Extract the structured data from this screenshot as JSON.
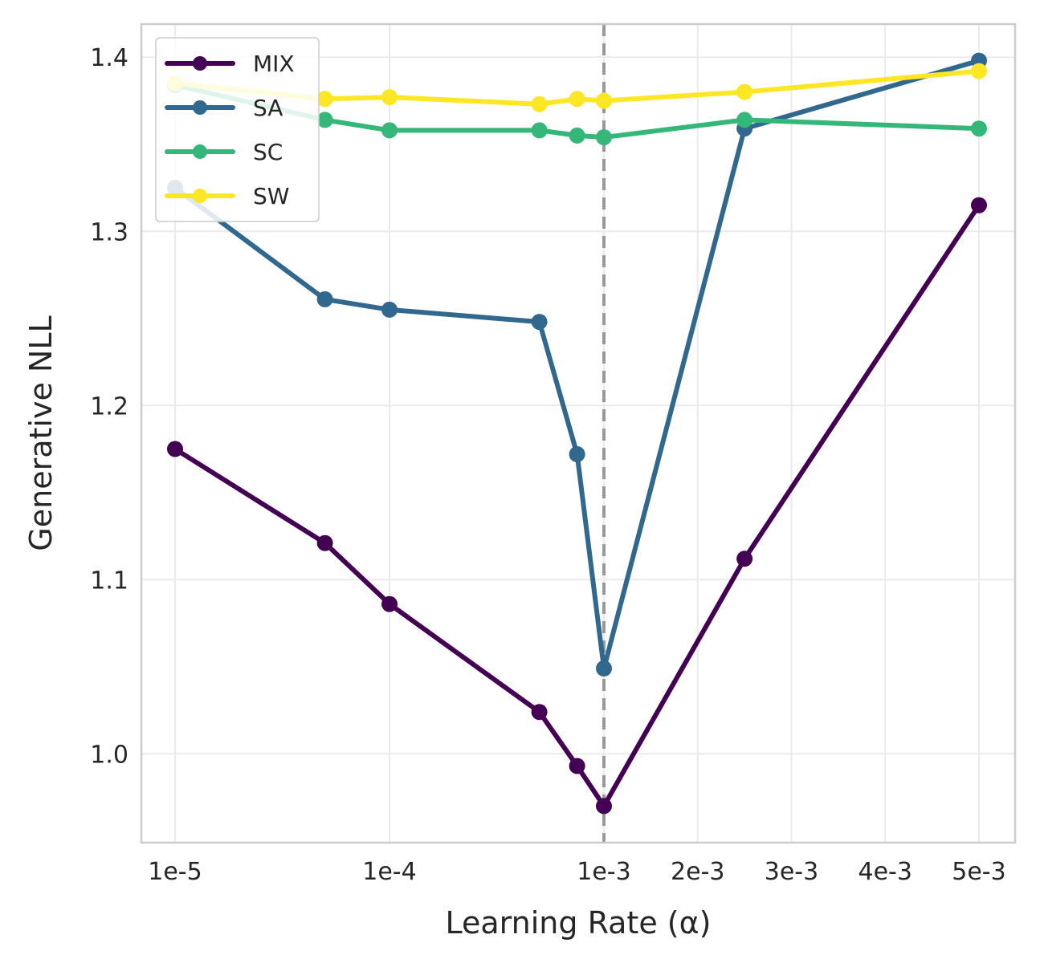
{
  "chart_data": {
    "type": "line",
    "xlabel": "Learning Rate (α)",
    "ylabel": "Generative NLL",
    "x_tick_labels": [
      "1e-5",
      "1e-4",
      "1e-3",
      "2e-3",
      "3e-3",
      "4e-3",
      "5e-3"
    ],
    "y_tick_labels": [
      "1.0",
      "1.1",
      "1.2",
      "1.3",
      "1.4"
    ],
    "ylim": [
      0.949,
      1.419
    ],
    "grid": true,
    "reference_line": {
      "x": "1e-3",
      "style": "dashed",
      "color": "#999999"
    },
    "legend_position": "top-left",
    "x_points": [
      "1e-5",
      "5e-5",
      "1e-4",
      "5e-4",
      "7.5e-4",
      "1e-3",
      "2.5e-3",
      "5e-3"
    ],
    "series": [
      {
        "name": "MIX",
        "color": "#440154",
        "values": [
          1.175,
          1.121,
          1.086,
          1.024,
          0.993,
          0.97,
          1.112,
          1.315
        ]
      },
      {
        "name": "SA",
        "color": "#31688e",
        "values": [
          1.325,
          1.261,
          1.255,
          1.248,
          1.172,
          1.049,
          1.359,
          1.398
        ]
      },
      {
        "name": "SC",
        "color": "#35b779",
        "values": [
          1.384,
          1.364,
          1.358,
          1.358,
          1.355,
          1.354,
          1.364,
          1.359
        ]
      },
      {
        "name": "SW",
        "color": "#fde725",
        "values": [
          1.385,
          1.376,
          1.377,
          1.373,
          1.376,
          1.375,
          1.38,
          1.392
        ]
      }
    ]
  }
}
